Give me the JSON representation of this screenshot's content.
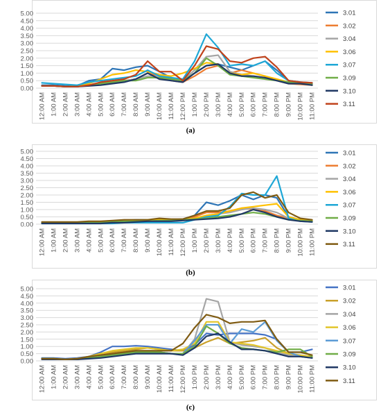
{
  "chart_data": [
    {
      "type": "line",
      "panel": "a",
      "caption": "(a)",
      "categories": [
        "12:00 AM",
        "1:00 AM",
        "2:00 AM",
        "3:00 AM",
        "4:00 AM",
        "5:00 AM",
        "6:00 AM",
        "7:00 AM",
        "8:00 AM",
        "9:00 AM",
        "10:00 AM",
        "11:00 AM",
        "12:00 PM",
        "1:00 PM",
        "2:00 PM",
        "3:00 PM",
        "4:00 PM",
        "5:00 PM",
        "6:00 PM",
        "7:00 PM",
        "8:00 PM",
        "9:00 PM",
        "10:00 PM",
        "11:00 PM"
      ],
      "yticks": [
        "0.00",
        "0.50",
        "1.00",
        "1.50",
        "2.00",
        "2.50",
        "3.00",
        "3.50",
        "4.00",
        "4.50",
        "5.00"
      ],
      "ylim": [
        0,
        5
      ],
      "grid": true,
      "legend_position": "right",
      "series": [
        {
          "name": "3.01",
          "color": "#2e75b6",
          "values": [
            0.2,
            0.2,
            0.15,
            0.15,
            0.5,
            0.6,
            1.3,
            1.2,
            1.4,
            1.5,
            1.1,
            0.7,
            0.5,
            1.0,
            1.5,
            1.6,
            1.4,
            1.2,
            1.5,
            1.8,
            1.2,
            0.5,
            0.4,
            0.35
          ]
        },
        {
          "name": "3.02",
          "color": "#ed7d31",
          "values": [
            0.15,
            0.15,
            0.1,
            0.1,
            0.2,
            0.3,
            0.4,
            0.5,
            0.6,
            1.0,
            0.8,
            0.5,
            0.4,
            0.8,
            1.3,
            1.5,
            1.0,
            1.2,
            1.0,
            0.8,
            0.5,
            0.3,
            0.25,
            0.2
          ]
        },
        {
          "name": "3.04",
          "color": "#a5a5a5",
          "values": [
            0.15,
            0.15,
            0.1,
            0.1,
            0.2,
            0.3,
            0.4,
            0.5,
            0.6,
            0.8,
            0.8,
            0.7,
            0.5,
            1.2,
            2.1,
            2.2,
            1.1,
            0.9,
            0.8,
            0.7,
            0.5,
            0.3,
            0.3,
            0.2
          ]
        },
        {
          "name": "3.06",
          "color": "#ffc000",
          "values": [
            0.15,
            0.15,
            0.1,
            0.15,
            0.3,
            0.6,
            0.9,
            1.0,
            1.2,
            1.1,
            0.9,
            0.8,
            1.0,
            1.3,
            1.7,
            1.6,
            1.0,
            0.9,
            1.0,
            0.8,
            0.6,
            0.4,
            0.3,
            0.3
          ]
        },
        {
          "name": "3.07",
          "color": "#1ea7d6",
          "values": [
            0.35,
            0.3,
            0.25,
            0.2,
            0.4,
            0.5,
            0.6,
            0.7,
            0.8,
            1.2,
            0.8,
            0.7,
            0.6,
            1.8,
            3.6,
            2.7,
            1.5,
            1.6,
            1.5,
            1.8,
            1.0,
            0.5,
            0.4,
            0.3
          ]
        },
        {
          "name": "3.09",
          "color": "#70ad47",
          "values": [
            0.15,
            0.15,
            0.1,
            0.1,
            0.2,
            0.3,
            0.4,
            0.5,
            0.5,
            0.7,
            0.7,
            0.6,
            0.5,
            1.0,
            2.0,
            1.5,
            0.9,
            0.8,
            0.7,
            0.6,
            0.5,
            0.4,
            0.3,
            0.25
          ]
        },
        {
          "name": "3.10",
          "color": "#1f3864",
          "values": [
            0.15,
            0.15,
            0.1,
            0.1,
            0.15,
            0.2,
            0.3,
            0.4,
            0.6,
            1.0,
            0.6,
            0.5,
            0.4,
            1.0,
            1.5,
            1.6,
            1.0,
            0.8,
            0.8,
            0.7,
            0.5,
            0.3,
            0.3,
            0.2
          ]
        },
        {
          "name": "3.11",
          "color": "#c0421b",
          "values": [
            0.15,
            0.15,
            0.1,
            0.1,
            0.2,
            0.4,
            0.5,
            0.6,
            0.9,
            1.8,
            1.1,
            1.1,
            0.5,
            1.5,
            2.8,
            2.6,
            1.8,
            1.7,
            2.0,
            2.1,
            1.4,
            0.5,
            0.4,
            0.35
          ]
        }
      ]
    },
    {
      "type": "line",
      "panel": "b",
      "caption": "(b)",
      "categories": [
        "12:00 AM",
        "1:00 AM",
        "2:00 AM",
        "3:00 AM",
        "4:00 AM",
        "5:00 AM",
        "6:00 AM",
        "7:00 AM",
        "8:00 AM",
        "9:00 AM",
        "10:00 AM",
        "11:00 AM",
        "12:00 PM",
        "1:00 PM",
        "2:00 PM",
        "3:00 PM",
        "4:00 PM",
        "5:00 PM",
        "6:00 PM",
        "7:00 PM",
        "8:00 PM",
        "9:00 PM",
        "10:00 PM",
        "11:00 PM"
      ],
      "yticks": [
        "0.00",
        "0.50",
        "1.00",
        "1.50",
        "2.00",
        "2.50",
        "3.00",
        "3.50",
        "4.00",
        "4.50",
        "5.00"
      ],
      "ylim": [
        0,
        5
      ],
      "grid": true,
      "legend_position": "right",
      "series": [
        {
          "name": "3.01",
          "color": "#2e75b6",
          "values": [
            0.1,
            0.1,
            0.1,
            0.1,
            0.1,
            0.15,
            0.2,
            0.25,
            0.3,
            0.3,
            0.3,
            0.3,
            0.35,
            0.6,
            1.5,
            1.3,
            1.6,
            2.0,
            1.7,
            2.0,
            1.8,
            0.5,
            0.3,
            0.25
          ]
        },
        {
          "name": "3.02",
          "color": "#ed7d31",
          "values": [
            0.1,
            0.1,
            0.1,
            0.1,
            0.1,
            0.15,
            0.2,
            0.2,
            0.25,
            0.25,
            0.3,
            0.3,
            0.3,
            0.5,
            0.8,
            0.8,
            0.9,
            1.1,
            1.0,
            0.9,
            0.6,
            0.4,
            0.3,
            0.2
          ]
        },
        {
          "name": "3.04",
          "color": "#a5a5a5",
          "values": [
            0.1,
            0.1,
            0.1,
            0.1,
            0.1,
            0.1,
            0.15,
            0.2,
            0.2,
            0.25,
            0.25,
            0.3,
            0.3,
            0.4,
            0.6,
            0.7,
            0.8,
            1.0,
            1.1,
            1.0,
            0.8,
            0.4,
            0.3,
            0.2
          ]
        },
        {
          "name": "3.06",
          "color": "#ffc000",
          "values": [
            0.1,
            0.1,
            0.1,
            0.1,
            0.1,
            0.15,
            0.2,
            0.2,
            0.25,
            0.3,
            0.3,
            0.3,
            0.3,
            0.4,
            0.6,
            0.7,
            0.9,
            1.1,
            1.2,
            1.3,
            1.4,
            0.5,
            0.3,
            0.25
          ]
        },
        {
          "name": "3.07",
          "color": "#1ea7d6",
          "values": [
            0.05,
            0.05,
            0.05,
            0.05,
            0.05,
            0.05,
            0.05,
            0.1,
            0.1,
            0.1,
            0.1,
            0.1,
            0.1,
            0.3,
            0.5,
            0.6,
            1.2,
            2.1,
            2.0,
            2.0,
            3.3,
            0.4,
            0.2,
            0.15
          ]
        },
        {
          "name": "3.09",
          "color": "#70ad47",
          "values": [
            0.1,
            0.1,
            0.1,
            0.1,
            0.1,
            0.1,
            0.15,
            0.2,
            0.2,
            0.2,
            0.25,
            0.25,
            0.3,
            0.35,
            0.4,
            0.5,
            0.6,
            0.7,
            0.8,
            0.7,
            0.5,
            0.3,
            0.25,
            0.2
          ]
        },
        {
          "name": "3.10",
          "color": "#1f3864",
          "values": [
            0.05,
            0.05,
            0.05,
            0.05,
            0.05,
            0.05,
            0.1,
            0.1,
            0.15,
            0.2,
            0.2,
            0.2,
            0.25,
            0.3,
            0.35,
            0.4,
            0.5,
            0.7,
            1.0,
            0.8,
            0.5,
            0.3,
            0.2,
            0.15
          ]
        },
        {
          "name": "3.11",
          "color": "#7f5b12",
          "values": [
            0.15,
            0.15,
            0.15,
            0.15,
            0.2,
            0.2,
            0.25,
            0.3,
            0.3,
            0.3,
            0.4,
            0.35,
            0.35,
            0.6,
            0.9,
            0.9,
            1.1,
            2.0,
            2.2,
            1.8,
            2.0,
            0.8,
            0.4,
            0.3
          ]
        }
      ]
    },
    {
      "type": "line",
      "panel": "c",
      "caption": "(c)",
      "categories": [
        "12:00 AM",
        "1:00 AM",
        "2:00 AM",
        "3:00 AM",
        "4:00 AM",
        "5:00 AM",
        "6:00 AM",
        "7:00 AM",
        "8:00 AM",
        "9:00 AM",
        "10:00 AM",
        "11:00 AM",
        "12:00 PM",
        "1:00 PM",
        "2:00 PM",
        "3:00 PM",
        "4:00 PM",
        "5:00 PM",
        "6:00 PM",
        "7:00 PM",
        "8:00 PM",
        "9:00 PM",
        "10:00 PM",
        "11:00 PM"
      ],
      "yticks": [
        "0.00",
        "0.50",
        "1.00",
        "1.50",
        "2.00",
        "2.50",
        "3.00",
        "3.50",
        "4.00",
        "4.50",
        "5.00"
      ],
      "ylim": [
        0,
        5
      ],
      "grid": true,
      "legend_position": "right",
      "series": [
        {
          "name": "3.01",
          "color": "#4472c4",
          "values": [
            0.2,
            0.2,
            0.15,
            0.2,
            0.3,
            0.6,
            1.0,
            1.0,
            1.05,
            1.0,
            0.9,
            0.8,
            0.7,
            1.1,
            1.9,
            1.8,
            1.9,
            1.9,
            1.9,
            1.8,
            1.5,
            0.6,
            0.6,
            0.8
          ]
        },
        {
          "name": "3.02",
          "color": "#c9a02a",
          "values": [
            0.15,
            0.15,
            0.1,
            0.15,
            0.3,
            0.5,
            0.6,
            0.7,
            0.8,
            0.9,
            0.8,
            0.7,
            0.7,
            0.9,
            1.3,
            1.6,
            1.2,
            1.3,
            1.4,
            1.6,
            0.9,
            0.5,
            0.3,
            0.3
          ]
        },
        {
          "name": "3.04",
          "color": "#a5a5a5",
          "values": [
            0.15,
            0.15,
            0.1,
            0.1,
            0.2,
            0.3,
            0.4,
            0.5,
            0.6,
            0.6,
            0.6,
            0.5,
            0.5,
            1.5,
            4.3,
            4.1,
            1.3,
            1.1,
            1.0,
            0.9,
            0.6,
            0.4,
            0.3,
            0.2
          ]
        },
        {
          "name": "3.06",
          "color": "#e2c52b",
          "values": [
            0.15,
            0.15,
            0.1,
            0.15,
            0.3,
            0.5,
            0.7,
            0.8,
            0.9,
            0.9,
            0.8,
            0.7,
            0.8,
            1.2,
            2.7,
            2.7,
            1.3,
            1.2,
            1.1,
            0.9,
            0.7,
            0.5,
            0.4,
            0.3
          ]
        },
        {
          "name": "3.07",
          "color": "#5b9bd5",
          "values": [
            0.15,
            0.15,
            0.1,
            0.1,
            0.2,
            0.3,
            0.4,
            0.5,
            0.6,
            0.6,
            0.6,
            0.5,
            0.5,
            1.4,
            2.5,
            2.5,
            1.2,
            2.2,
            2.0,
            2.7,
            1.4,
            0.6,
            0.3,
            0.2
          ]
        },
        {
          "name": "3.09",
          "color": "#70ad47",
          "values": [
            0.15,
            0.15,
            0.1,
            0.1,
            0.2,
            0.3,
            0.4,
            0.5,
            0.6,
            0.6,
            0.6,
            0.5,
            0.5,
            1.0,
            2.4,
            1.9,
            1.2,
            0.9,
            0.8,
            0.7,
            0.6,
            0.8,
            0.8,
            0.3
          ]
        },
        {
          "name": "3.10",
          "color": "#1f3864",
          "values": [
            0.1,
            0.1,
            0.1,
            0.1,
            0.15,
            0.2,
            0.3,
            0.4,
            0.5,
            0.5,
            0.5,
            0.5,
            0.4,
            0.9,
            1.7,
            1.9,
            1.3,
            0.8,
            0.8,
            0.7,
            0.5,
            0.3,
            0.3,
            0.2
          ]
        },
        {
          "name": "3.11",
          "color": "#7f5b12",
          "values": [
            0.15,
            0.15,
            0.1,
            0.15,
            0.3,
            0.4,
            0.5,
            0.6,
            0.7,
            0.7,
            0.7,
            0.7,
            1.2,
            2.3,
            3.2,
            3.0,
            2.6,
            2.7,
            2.7,
            2.8,
            1.5,
            0.6,
            0.6,
            0.4
          ]
        }
      ]
    }
  ]
}
